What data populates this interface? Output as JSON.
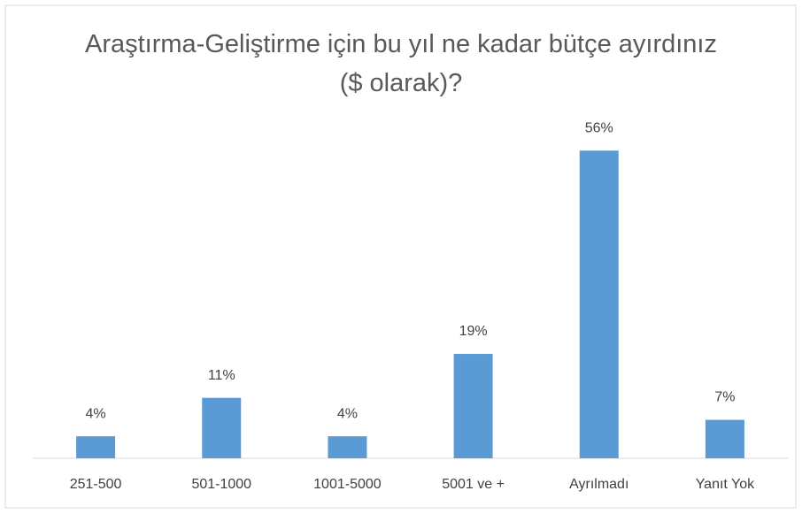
{
  "chart_data": {
    "type": "bar",
    "title": "Araştırma-Geliştirme için bu yıl ne kadar bütçe ayırdınız ($ olarak)?",
    "categories": [
      "251-500",
      "501-1000",
      "1001-5000",
      "5001 ve +",
      "Ayrılmadı",
      "Yanıt Yok"
    ],
    "values": [
      4,
      11,
      4,
      19,
      56,
      7
    ],
    "value_labels": [
      "4%",
      "11%",
      "4%",
      "19%",
      "56%",
      "7%"
    ],
    "color": "#5b9bd5"
  }
}
